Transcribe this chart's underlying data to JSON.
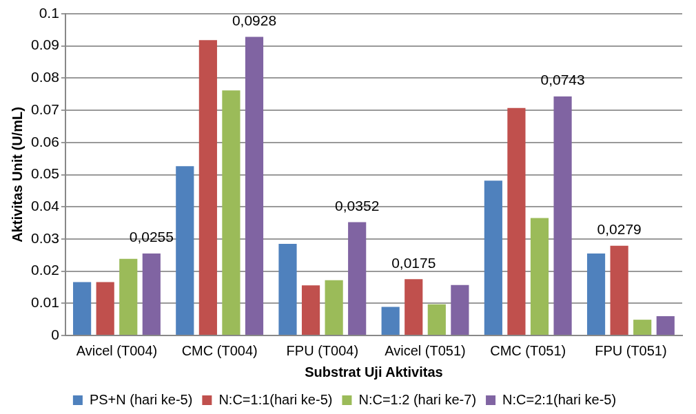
{
  "chart_data": {
    "type": "bar",
    "xlabel": "Substrat Uji Aktivitas",
    "ylabel": "Aktivitas Unit (U/mL)",
    "categories": [
      "Avicel (T004)",
      "CMC (T004)",
      "FPU (T004)",
      "Avicel (T051)",
      "CMC (T051)",
      "FPU (T051)"
    ],
    "series": [
      {
        "name": "PS+N (hari ke-5)",
        "color": "#4f81bd",
        "values": [
          0.0166,
          0.0526,
          0.0285,
          0.0089,
          0.0481,
          0.0255
        ]
      },
      {
        "name": "N:C=1:1(hari ke-5)",
        "color": "#c0504d",
        "values": [
          0.0166,
          0.0918,
          0.0156,
          0.0175,
          0.0707,
          0.0279
        ],
        "value_labels": [
          null,
          null,
          null,
          "0,0175",
          null,
          "0,0279"
        ]
      },
      {
        "name": "N:C=1:2 (hari ke-7)",
        "color": "#9bbb59",
        "values": [
          0.0238,
          0.0762,
          0.0172,
          0.0097,
          0.0365,
          0.0049
        ]
      },
      {
        "name": "N:C=2:1(hari ke-5)",
        "color": "#8064a2",
        "values": [
          0.0255,
          0.0928,
          0.0352,
          0.0157,
          0.0743,
          0.006
        ],
        "value_labels": [
          "0,0255",
          "0,0928",
          "0,0352",
          null,
          "0,0743",
          null
        ]
      }
    ],
    "ylim": [
      0,
      0.1
    ],
    "yticks": [
      0,
      0.01,
      0.02,
      0.03,
      0.04,
      0.05,
      0.06,
      0.07,
      0.08,
      0.09,
      0.1
    ],
    "grid": "y",
    "legend": "bottom"
  }
}
